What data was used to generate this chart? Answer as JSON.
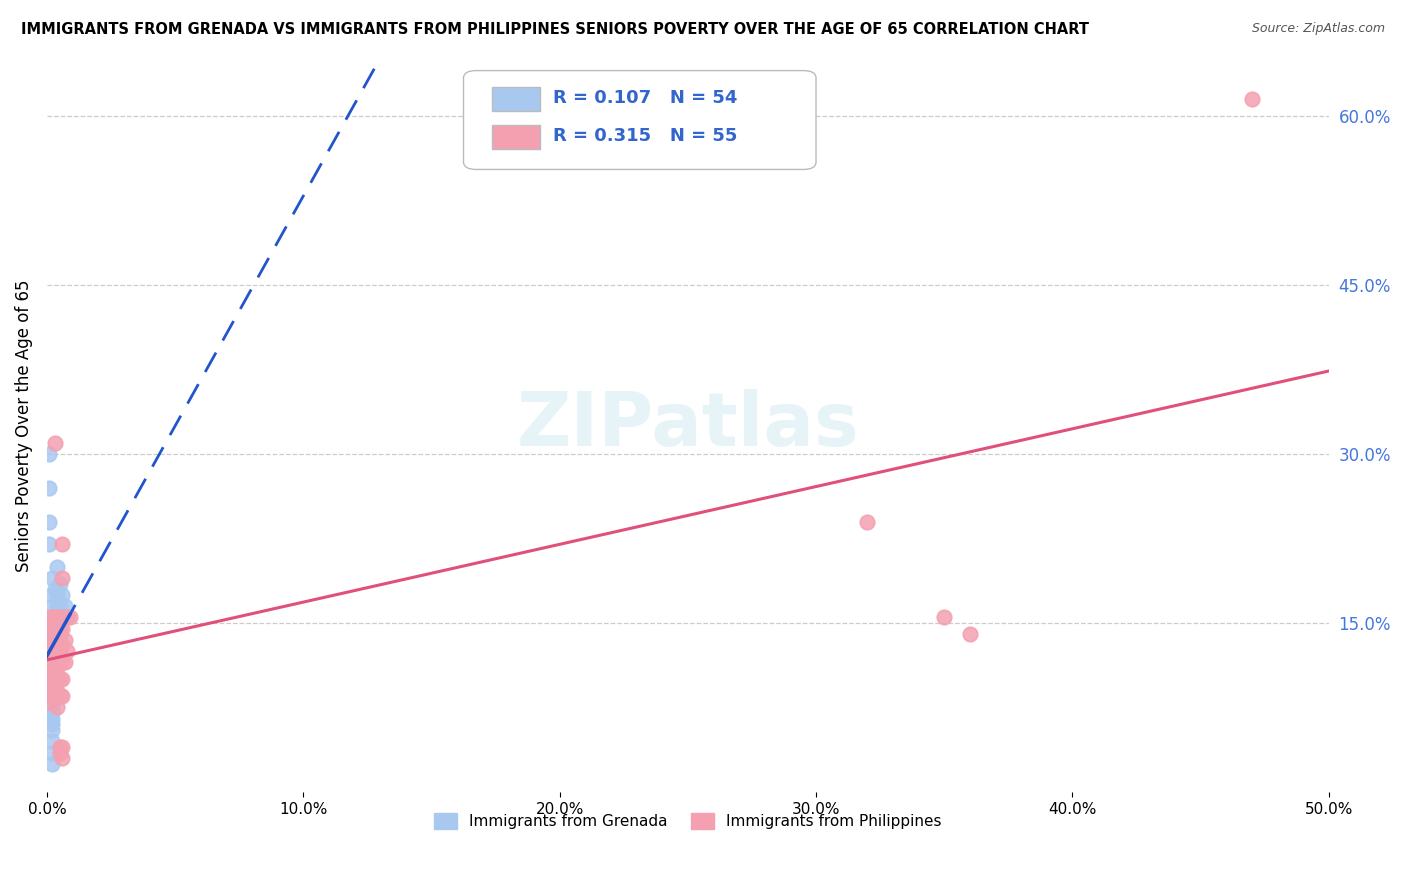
{
  "title": "IMMIGRANTS FROM GRENADA VS IMMIGRANTS FROM PHILIPPINES SENIORS POVERTY OVER THE AGE OF 65 CORRELATION CHART",
  "source": "Source: ZipAtlas.com",
  "ylabel": "Seniors Poverty Over the Age of 65",
  "xlim": [
    0.0,
    0.5
  ],
  "ylim": [
    0.0,
    0.65
  ],
  "xtick_vals": [
    0.0,
    0.1,
    0.2,
    0.3,
    0.4,
    0.5
  ],
  "xtick_labels": [
    "0.0%",
    "10.0%",
    "20.0%",
    "30.0%",
    "40.0%",
    "50.0%"
  ],
  "ytick_labels_right": [
    "15.0%",
    "30.0%",
    "45.0%",
    "60.0%"
  ],
  "yticks_right": [
    0.15,
    0.3,
    0.45,
    0.6
  ],
  "grenada_R": "0.107",
  "grenada_N": "54",
  "philippines_R": "0.315",
  "philippines_N": "55",
  "grenada_color": "#a8c8f0",
  "philippines_color": "#f4a0b0",
  "grenada_line_color": "#2255cc",
  "philippines_line_color": "#e0507a",
  "grenada_scatter": [
    [
      0.001,
      0.3
    ],
    [
      0.001,
      0.27
    ],
    [
      0.001,
      0.24
    ],
    [
      0.001,
      0.22
    ],
    [
      0.002,
      0.19
    ],
    [
      0.002,
      0.175
    ],
    [
      0.002,
      0.165
    ],
    [
      0.002,
      0.155
    ],
    [
      0.002,
      0.145
    ],
    [
      0.002,
      0.135
    ],
    [
      0.002,
      0.13
    ],
    [
      0.002,
      0.125
    ],
    [
      0.002,
      0.12
    ],
    [
      0.002,
      0.115
    ],
    [
      0.002,
      0.11
    ],
    [
      0.002,
      0.105
    ],
    [
      0.002,
      0.1
    ],
    [
      0.002,
      0.095
    ],
    [
      0.002,
      0.09
    ],
    [
      0.002,
      0.085
    ],
    [
      0.002,
      0.08
    ],
    [
      0.002,
      0.075
    ],
    [
      0.002,
      0.07
    ],
    [
      0.002,
      0.065
    ],
    [
      0.002,
      0.06
    ],
    [
      0.002,
      0.055
    ],
    [
      0.002,
      0.045
    ],
    [
      0.002,
      0.035
    ],
    [
      0.002,
      0.025
    ],
    [
      0.003,
      0.18
    ],
    [
      0.003,
      0.155
    ],
    [
      0.003,
      0.145
    ],
    [
      0.003,
      0.135
    ],
    [
      0.003,
      0.125
    ],
    [
      0.003,
      0.115
    ],
    [
      0.003,
      0.105
    ],
    [
      0.003,
      0.095
    ],
    [
      0.003,
      0.085
    ],
    [
      0.004,
      0.2
    ],
    [
      0.004,
      0.175
    ],
    [
      0.004,
      0.165
    ],
    [
      0.004,
      0.155
    ],
    [
      0.004,
      0.145
    ],
    [
      0.004,
      0.13
    ],
    [
      0.004,
      0.115
    ],
    [
      0.004,
      0.1
    ],
    [
      0.005,
      0.185
    ],
    [
      0.005,
      0.165
    ],
    [
      0.005,
      0.145
    ],
    [
      0.005,
      0.125
    ],
    [
      0.006,
      0.175
    ],
    [
      0.006,
      0.155
    ],
    [
      0.007,
      0.165
    ],
    [
      0.008,
      0.155
    ]
  ],
  "philippines_scatter": [
    [
      0.001,
      0.155
    ],
    [
      0.001,
      0.14
    ],
    [
      0.001,
      0.13
    ],
    [
      0.001,
      0.12
    ],
    [
      0.001,
      0.11
    ],
    [
      0.001,
      0.1
    ],
    [
      0.001,
      0.09
    ],
    [
      0.001,
      0.08
    ],
    [
      0.002,
      0.155
    ],
    [
      0.002,
      0.145
    ],
    [
      0.002,
      0.135
    ],
    [
      0.002,
      0.125
    ],
    [
      0.002,
      0.115
    ],
    [
      0.002,
      0.105
    ],
    [
      0.002,
      0.095
    ],
    [
      0.002,
      0.085
    ],
    [
      0.003,
      0.31
    ],
    [
      0.003,
      0.155
    ],
    [
      0.003,
      0.14
    ],
    [
      0.003,
      0.13
    ],
    [
      0.003,
      0.12
    ],
    [
      0.003,
      0.11
    ],
    [
      0.003,
      0.1
    ],
    [
      0.003,
      0.09
    ],
    [
      0.004,
      0.155
    ],
    [
      0.004,
      0.13
    ],
    [
      0.004,
      0.11
    ],
    [
      0.004,
      0.09
    ],
    [
      0.004,
      0.075
    ],
    [
      0.005,
      0.155
    ],
    [
      0.005,
      0.14
    ],
    [
      0.005,
      0.12
    ],
    [
      0.005,
      0.1
    ],
    [
      0.005,
      0.085
    ],
    [
      0.005,
      0.04
    ],
    [
      0.005,
      0.035
    ],
    [
      0.006,
      0.22
    ],
    [
      0.006,
      0.19
    ],
    [
      0.006,
      0.145
    ],
    [
      0.006,
      0.13
    ],
    [
      0.006,
      0.115
    ],
    [
      0.006,
      0.1
    ],
    [
      0.006,
      0.085
    ],
    [
      0.006,
      0.04
    ],
    [
      0.006,
      0.03
    ],
    [
      0.007,
      0.155
    ],
    [
      0.007,
      0.135
    ],
    [
      0.007,
      0.115
    ],
    [
      0.008,
      0.155
    ],
    [
      0.008,
      0.125
    ],
    [
      0.009,
      0.155
    ],
    [
      0.32,
      0.24
    ],
    [
      0.35,
      0.155
    ],
    [
      0.36,
      0.14
    ],
    [
      0.47,
      0.615
    ]
  ],
  "watermark": "ZIPatlas",
  "background_color": "#ffffff",
  "grid_color": "#cccccc"
}
